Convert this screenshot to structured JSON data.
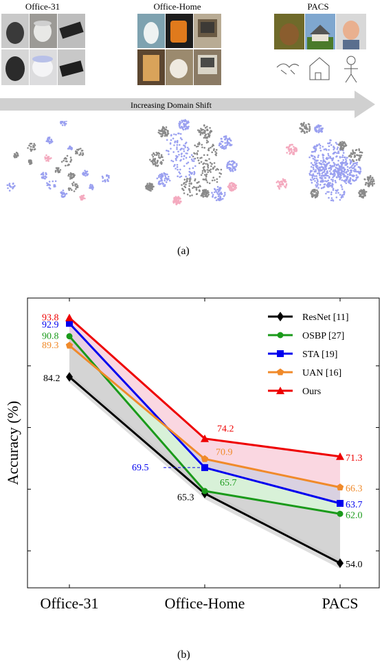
{
  "figure_a": {
    "datasets": [
      {
        "title": "Office-31"
      },
      {
        "title": "Office-Home"
      },
      {
        "title": "PACS"
      }
    ],
    "arrow_label": "Increasing Domain Shift",
    "caption": "(a)"
  },
  "figure_b": {
    "caption": "(b)"
  },
  "chart_data": {
    "type": "line",
    "ylabel": "Accuracy (%)",
    "xlabel": "",
    "categories": [
      "Office-31",
      "Office-Home",
      "PACS"
    ],
    "ylim": [
      50,
      97
    ],
    "legend_position": "top-right",
    "series": [
      {
        "name": "ResNet [11]",
        "color": "#000000",
        "marker": "diamond",
        "values": [
          84.2,
          65.3,
          54.0
        ],
        "labels": [
          "84.2",
          "65.3",
          "54.0"
        ]
      },
      {
        "name": "OSBP [27]",
        "color": "#1a9a1a",
        "marker": "circle",
        "values": [
          90.8,
          65.7,
          62.0
        ],
        "labels": [
          "90.8",
          "65.7",
          "62.0"
        ]
      },
      {
        "name": "STA [19]",
        "color": "#0000ee",
        "marker": "square",
        "values": [
          92.9,
          69.5,
          63.7
        ],
        "labels": [
          "92.9",
          "69.5",
          "63.7"
        ]
      },
      {
        "name": "UAN [16]",
        "color": "#f08a2a",
        "marker": "pentagon",
        "values": [
          89.3,
          70.9,
          66.3
        ],
        "labels": [
          "89.3",
          "70.9",
          "66.3"
        ]
      },
      {
        "name": "Ours",
        "color": "#ee0000",
        "marker": "triangle",
        "values": [
          93.8,
          74.2,
          71.3
        ],
        "labels": [
          "93.8",
          "74.2",
          "71.3"
        ]
      }
    ]
  }
}
